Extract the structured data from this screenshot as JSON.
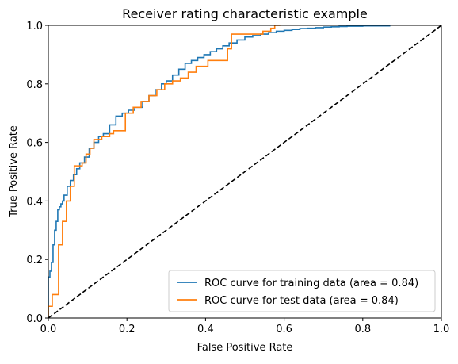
{
  "chart_data": {
    "type": "line",
    "title": "Receiver rating characteristic example",
    "xlabel": "False Positive Rate",
    "ylabel": "True Positive Rate",
    "xlim": [
      0.0,
      1.0
    ],
    "ylim": [
      0.0,
      1.0
    ],
    "xticks": [
      "0.0",
      "0.2",
      "0.4",
      "0.6",
      "0.8",
      "1.0"
    ],
    "yticks": [
      "0.0",
      "0.2",
      "0.4",
      "0.6",
      "0.8",
      "1.0"
    ],
    "grid": false,
    "legend_position": "lower right",
    "series": [
      {
        "name": "ROC curve for training data (area = 0.84)",
        "color": "#1f77b4",
        "style": "solid",
        "x": [
          0.0,
          0.0,
          0.004,
          0.004,
          0.008,
          0.008,
          0.012,
          0.012,
          0.016,
          0.016,
          0.02,
          0.02,
          0.024,
          0.024,
          0.028,
          0.028,
          0.032,
          0.032,
          0.036,
          0.036,
          0.04,
          0.04,
          0.048,
          0.048,
          0.056,
          0.056,
          0.064,
          0.064,
          0.072,
          0.072,
          0.08,
          0.08,
          0.092,
          0.092,
          0.104,
          0.104,
          0.116,
          0.116,
          0.128,
          0.128,
          0.14,
          0.14,
          0.156,
          0.156,
          0.172,
          0.172,
          0.188,
          0.188,
          0.204,
          0.204,
          0.22,
          0.22,
          0.24,
          0.24,
          0.256,
          0.256,
          0.272,
          0.272,
          0.288,
          0.288,
          0.3,
          0.3,
          0.316,
          0.316,
          0.332,
          0.332,
          0.348,
          0.348,
          0.364,
          0.364,
          0.38,
          0.38,
          0.396,
          0.396,
          0.412,
          0.412,
          0.428,
          0.428,
          0.444,
          0.444,
          0.46,
          0.46,
          0.48,
          0.48,
          0.5,
          0.5,
          0.52,
          0.52,
          0.54,
          0.54,
          0.56,
          0.56,
          0.58,
          0.58,
          0.6,
          0.6,
          0.62,
          0.62,
          0.64,
          0.64,
          0.66,
          0.66,
          0.68,
          0.68,
          0.7,
          0.7,
          0.72,
          0.72,
          0.74,
          0.74,
          0.76,
          0.76,
          0.8,
          0.8,
          0.87
        ],
        "y": [
          0.0,
          0.14,
          0.14,
          0.16,
          0.16,
          0.19,
          0.19,
          0.25,
          0.25,
          0.3,
          0.3,
          0.33,
          0.33,
          0.37,
          0.37,
          0.38,
          0.38,
          0.39,
          0.39,
          0.4,
          0.4,
          0.42,
          0.42,
          0.45,
          0.45,
          0.47,
          0.47,
          0.49,
          0.49,
          0.51,
          0.51,
          0.53,
          0.53,
          0.55,
          0.55,
          0.58,
          0.58,
          0.6,
          0.6,
          0.62,
          0.62,
          0.63,
          0.63,
          0.66,
          0.66,
          0.69,
          0.69,
          0.7,
          0.7,
          0.71,
          0.71,
          0.72,
          0.72,
          0.74,
          0.74,
          0.76,
          0.76,
          0.78,
          0.78,
          0.8,
          0.8,
          0.81,
          0.81,
          0.83,
          0.83,
          0.85,
          0.85,
          0.87,
          0.87,
          0.88,
          0.88,
          0.89,
          0.89,
          0.9,
          0.9,
          0.91,
          0.91,
          0.92,
          0.92,
          0.93,
          0.93,
          0.94,
          0.94,
          0.95,
          0.95,
          0.96,
          0.96,
          0.965,
          0.965,
          0.97,
          0.97,
          0.975,
          0.975,
          0.98,
          0.98,
          0.983,
          0.983,
          0.986,
          0.986,
          0.989,
          0.989,
          0.99,
          0.99,
          0.992,
          0.992,
          0.994,
          0.994,
          0.995,
          0.995,
          0.996,
          0.996,
          0.997,
          0.997,
          0.998,
          0.998
        ]
      },
      {
        "name": "ROC curve for test data (area = 0.84)",
        "color": "#ff7f0e",
        "style": "solid",
        "x": [
          0.0,
          0.0,
          0.01,
          0.01,
          0.026,
          0.026,
          0.036,
          0.036,
          0.046,
          0.046,
          0.056,
          0.056,
          0.066,
          0.066,
          0.086,
          0.086,
          0.096,
          0.096,
          0.106,
          0.106,
          0.116,
          0.116,
          0.136,
          0.136,
          0.156,
          0.156,
          0.166,
          0.166,
          0.196,
          0.196,
          0.216,
          0.216,
          0.236,
          0.236,
          0.256,
          0.256,
          0.276,
          0.276,
          0.296,
          0.296,
          0.316,
          0.316,
          0.336,
          0.336,
          0.356,
          0.356,
          0.376,
          0.376,
          0.406,
          0.406,
          0.426,
          0.426,
          0.456,
          0.456,
          0.466,
          0.466,
          0.486,
          0.486,
          0.506,
          0.506,
          0.546,
          0.546,
          0.566,
          0.566,
          0.576,
          0.576,
          0.59
        ],
        "y": [
          0.0,
          0.04,
          0.04,
          0.08,
          0.08,
          0.25,
          0.25,
          0.33,
          0.33,
          0.4,
          0.4,
          0.45,
          0.45,
          0.52,
          0.52,
          0.53,
          0.53,
          0.56,
          0.56,
          0.58,
          0.58,
          0.61,
          0.61,
          0.62,
          0.62,
          0.63,
          0.63,
          0.64,
          0.64,
          0.7,
          0.7,
          0.72,
          0.72,
          0.74,
          0.74,
          0.76,
          0.76,
          0.78,
          0.78,
          0.8,
          0.8,
          0.81,
          0.81,
          0.82,
          0.82,
          0.84,
          0.84,
          0.86,
          0.86,
          0.88,
          0.88,
          0.88,
          0.88,
          0.92,
          0.92,
          0.97,
          0.97,
          0.97,
          0.97,
          0.97,
          0.97,
          0.98,
          0.98,
          0.99,
          0.99,
          1.0,
          1.0
        ]
      },
      {
        "name": "",
        "color": "#000000",
        "style": "dashed",
        "x": [
          0.0,
          1.0
        ],
        "y": [
          0.0,
          1.0
        ]
      }
    ]
  }
}
